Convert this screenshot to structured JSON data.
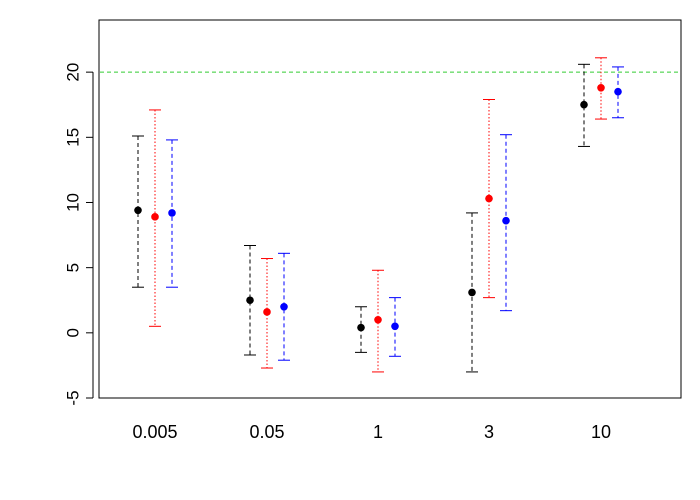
{
  "chart_data": {
    "type": "scatter",
    "title": "",
    "xlabel": "",
    "ylabel": "",
    "categories": [
      "0.005",
      "0.05",
      "1",
      "3",
      "10"
    ],
    "ylim": [
      -5,
      24
    ],
    "yticks": [
      -5,
      0,
      5,
      10,
      15,
      20
    ],
    "grid": false,
    "legend": "none",
    "reference_line": {
      "y": 20,
      "color": "#33cc33",
      "style": "dashed"
    },
    "series": [
      {
        "color": "#000000",
        "line_style": "dashed",
        "values": [
          9.4,
          2.5,
          0.4,
          3.1,
          17.5
        ],
        "lower": [
          3.5,
          -1.7,
          -1.5,
          -3.0,
          14.3
        ],
        "upper": [
          15.1,
          6.7,
          2.0,
          9.2,
          20.6
        ]
      },
      {
        "color": "#ff0000",
        "line_style": "dotted",
        "values": [
          8.9,
          1.6,
          1.0,
          10.3,
          18.8
        ],
        "lower": [
          0.5,
          -2.7,
          -3.0,
          2.7,
          16.4
        ],
        "upper": [
          17.1,
          5.7,
          4.8,
          17.9,
          21.1
        ]
      },
      {
        "color": "#0000ff",
        "line_style": "dashed",
        "values": [
          9.2,
          2.0,
          0.5,
          8.6,
          18.5
        ],
        "lower": [
          3.5,
          -2.1,
          -1.8,
          1.7,
          16.5
        ],
        "upper": [
          14.8,
          6.1,
          2.7,
          15.2,
          20.4
        ]
      }
    ]
  }
}
